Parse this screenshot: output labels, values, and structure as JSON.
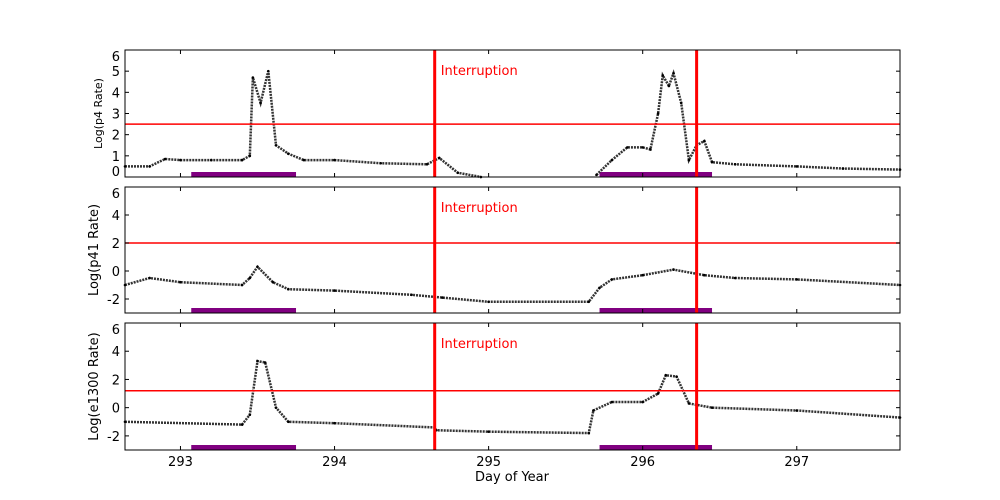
{
  "chart_data": [
    {
      "type": "scatter",
      "ylabel": "Log(p4 Rate)",
      "ylim": [
        0,
        6
      ],
      "yticks": [
        "0",
        "1",
        "2",
        "3",
        "4",
        "5",
        "6"
      ],
      "ytickvals": [
        0,
        1,
        2,
        3,
        4,
        5,
        6
      ],
      "threshold": 2.5,
      "annotation": "Interruption",
      "points": [
        [
          292.64,
          0.5
        ],
        [
          292.8,
          0.5
        ],
        [
          292.9,
          0.85
        ],
        [
          293.0,
          0.8
        ],
        [
          293.2,
          0.8
        ],
        [
          293.4,
          0.8
        ],
        [
          293.45,
          1.0
        ],
        [
          293.47,
          4.7
        ],
        [
          293.52,
          3.5
        ],
        [
          293.57,
          5.0
        ],
        [
          293.62,
          1.5
        ],
        [
          293.7,
          1.1
        ],
        [
          293.8,
          0.8
        ],
        [
          294.0,
          0.8
        ],
        [
          294.3,
          0.65
        ],
        [
          294.6,
          0.6
        ],
        [
          294.68,
          0.9
        ],
        [
          294.8,
          0.2
        ],
        [
          294.95,
          0.0
        ],
        null,
        [
          295.7,
          0.1
        ],
        [
          295.8,
          0.8
        ],
        [
          295.9,
          1.4
        ],
        [
          296.0,
          1.4
        ],
        [
          296.05,
          1.3
        ],
        [
          296.1,
          3.0
        ],
        [
          296.13,
          4.8
        ],
        [
          296.17,
          4.3
        ],
        [
          296.2,
          4.9
        ],
        [
          296.25,
          3.5
        ],
        [
          296.3,
          0.8
        ],
        [
          296.35,
          1.5
        ],
        [
          296.4,
          1.7
        ],
        [
          296.45,
          0.7
        ],
        [
          296.6,
          0.6
        ],
        [
          297.0,
          0.5
        ],
        [
          297.3,
          0.4
        ],
        [
          297.67,
          0.35
        ]
      ]
    },
    {
      "type": "scatter",
      "ylabel": "Log(p41 Rate)",
      "ylim": [
        -3,
        6
      ],
      "yticks": [
        "-2",
        "0",
        "2",
        "4",
        "6"
      ],
      "ytickvals": [
        -2,
        0,
        2,
        4,
        6
      ],
      "threshold": 2,
      "annotation": "Interruption",
      "points": [
        [
          292.64,
          -1.0
        ],
        [
          292.8,
          -0.5
        ],
        [
          293.0,
          -0.8
        ],
        [
          293.4,
          -1.0
        ],
        [
          293.45,
          -0.5
        ],
        [
          293.5,
          0.3
        ],
        [
          293.6,
          -0.8
        ],
        [
          293.7,
          -1.3
        ],
        [
          294.0,
          -1.4
        ],
        [
          294.5,
          -1.7
        ],
        [
          294.7,
          -1.9
        ],
        [
          295.0,
          -2.2
        ],
        [
          295.65,
          -2.2
        ],
        [
          295.72,
          -1.2
        ],
        [
          295.8,
          -0.6
        ],
        [
          296.0,
          -0.3
        ],
        [
          296.2,
          0.1
        ],
        [
          296.4,
          -0.3
        ],
        [
          296.6,
          -0.5
        ],
        [
          297.0,
          -0.6
        ],
        [
          297.67,
          -1.0
        ]
      ]
    },
    {
      "type": "scatter",
      "ylabel": "Log(e1300 Rate)",
      "ylim": [
        -3,
        6
      ],
      "yticks": [
        "-2",
        "0",
        "2",
        "4",
        "6"
      ],
      "ytickvals": [
        -2,
        0,
        2,
        4,
        6
      ],
      "threshold": 1.2,
      "annotation": "Interruption",
      "points": [
        [
          292.64,
          -1.0
        ],
        [
          293.4,
          -1.2
        ],
        [
          293.45,
          -0.5
        ],
        [
          293.5,
          3.3
        ],
        [
          293.55,
          3.2
        ],
        [
          293.62,
          0.0
        ],
        [
          293.7,
          -1.0
        ],
        [
          294.0,
          -1.1
        ],
        [
          294.65,
          -1.4
        ],
        [
          294.66,
          -1.6
        ],
        [
          295.0,
          -1.7
        ],
        [
          295.65,
          -1.8
        ],
        [
          295.68,
          -0.2
        ],
        [
          295.8,
          0.4
        ],
        [
          296.0,
          0.4
        ],
        [
          296.1,
          1.0
        ],
        [
          296.15,
          2.3
        ],
        [
          296.22,
          2.2
        ],
        [
          296.3,
          0.3
        ],
        [
          296.45,
          0.0
        ],
        [
          297.0,
          -0.2
        ],
        [
          297.67,
          -0.7
        ]
      ]
    }
  ],
  "xaxis": {
    "label": "Day of Year",
    "xlim": [
      292.64,
      297.67
    ],
    "ticks": [
      "293",
      "294",
      "295",
      "296",
      "297"
    ],
    "tickvals": [
      293,
      294,
      295,
      296,
      297
    ]
  },
  "interruptions": [
    294.65,
    296.35
  ],
  "intervals": [
    [
      293.07,
      293.75
    ],
    [
      295.72,
      296.45
    ]
  ],
  "colors": {
    "threshold": "#ff0000",
    "interruption": "#ff0000",
    "interval": "#800080",
    "data": "#000000"
  }
}
